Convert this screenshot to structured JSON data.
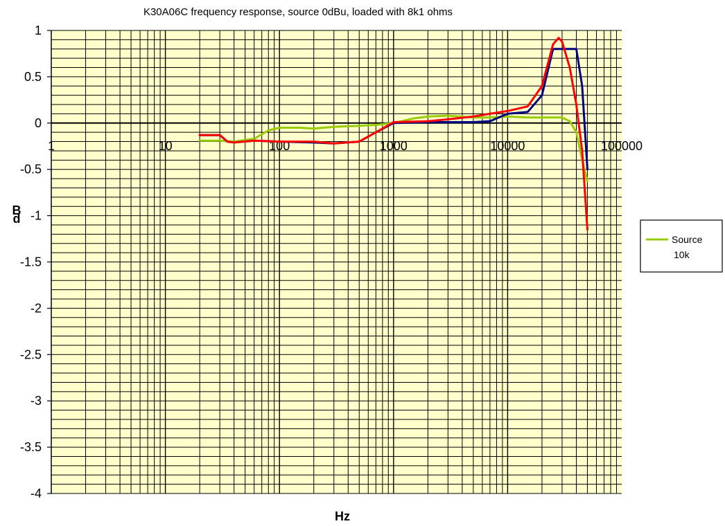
{
  "chart_data": {
    "type": "line",
    "title": "K30A06C frequency response, source 0dBu, loaded with 8k1 ohms",
    "xlabel": "Hz",
    "ylabel": "dB",
    "x_scale": "log",
    "xlim": [
      1,
      100000
    ],
    "ylim": [
      -4,
      1
    ],
    "x_ticks": [
      1,
      10,
      100,
      1000,
      10000,
      100000
    ],
    "x_tick_labels": [
      "1",
      "10",
      "100",
      "1000",
      "10000",
      "100000"
    ],
    "y_ticks": [
      1,
      0.5,
      0,
      -0.5,
      -1,
      -1.5,
      -2,
      -2.5,
      -3,
      -3.5,
      -4
    ],
    "y_tick_labels": [
      "1",
      "0.5",
      "0",
      "-0.5",
      "-1",
      "-1.5",
      "-2",
      "-2.5",
      "-3",
      "-3.5",
      "-4"
    ],
    "grid": true,
    "plot_background": "#ffffcc",
    "legend": {
      "placement": "right",
      "entries": [
        {
          "label": "Source 10k",
          "color": "#99cc00"
        }
      ]
    },
    "series": [
      {
        "name": "Source 10k",
        "color": "#99cc00",
        "points": [
          [
            20,
            -0.19
          ],
          [
            30,
            -0.19
          ],
          [
            40,
            -0.2
          ],
          [
            60,
            -0.17
          ],
          [
            80,
            -0.08
          ],
          [
            100,
            -0.05
          ],
          [
            150,
            -0.05
          ],
          [
            200,
            -0.06
          ],
          [
            300,
            -0.04
          ],
          [
            500,
            -0.03
          ],
          [
            700,
            -0.02
          ],
          [
            1000,
            0.0
          ],
          [
            1500,
            0.05
          ],
          [
            2000,
            0.07
          ],
          [
            3000,
            0.08
          ],
          [
            5000,
            0.06
          ],
          [
            7000,
            0.06
          ],
          [
            10000,
            0.07
          ],
          [
            15000,
            0.06
          ],
          [
            20000,
            0.06
          ],
          [
            30000,
            0.06
          ],
          [
            35000,
            0.02
          ],
          [
            40000,
            -0.1
          ],
          [
            45000,
            -0.4
          ],
          [
            50000,
            -0.63
          ]
        ]
      },
      {
        "color": "#000080",
        "points": [
          [
            20,
            -0.13
          ],
          [
            30,
            -0.13
          ],
          [
            35,
            -0.2
          ],
          [
            40,
            -0.21
          ],
          [
            60,
            -0.19
          ],
          [
            100,
            -0.2
          ],
          [
            200,
            -0.21
          ],
          [
            300,
            -0.22
          ],
          [
            500,
            -0.2
          ],
          [
            700,
            -0.1
          ],
          [
            1000,
            0.0
          ],
          [
            2000,
            0.01
          ],
          [
            3000,
            0.01
          ],
          [
            5000,
            0.01
          ],
          [
            7000,
            0.02
          ],
          [
            10000,
            0.1
          ],
          [
            15000,
            0.12
          ],
          [
            20000,
            0.3
          ],
          [
            25000,
            0.8
          ],
          [
            30000,
            0.8
          ],
          [
            40000,
            0.8
          ],
          [
            45000,
            0.4
          ],
          [
            50000,
            -0.5
          ]
        ]
      },
      {
        "color": "#ff0000",
        "points": [
          [
            20,
            -0.13
          ],
          [
            30,
            -0.13
          ],
          [
            35,
            -0.2
          ],
          [
            40,
            -0.21
          ],
          [
            60,
            -0.19
          ],
          [
            100,
            -0.2
          ],
          [
            200,
            -0.2
          ],
          [
            300,
            -0.22
          ],
          [
            500,
            -0.2
          ],
          [
            700,
            -0.1
          ],
          [
            1000,
            0.01
          ],
          [
            2000,
            0.02
          ],
          [
            3000,
            0.04
          ],
          [
            5000,
            0.07
          ],
          [
            7000,
            0.1
          ],
          [
            10000,
            0.13
          ],
          [
            15000,
            0.18
          ],
          [
            20000,
            0.4
          ],
          [
            25000,
            0.85
          ],
          [
            28000,
            0.92
          ],
          [
            30000,
            0.88
          ],
          [
            35000,
            0.6
          ],
          [
            40000,
            0.2
          ],
          [
            45000,
            -0.3
          ],
          [
            50000,
            -1.15
          ]
        ]
      }
    ]
  }
}
